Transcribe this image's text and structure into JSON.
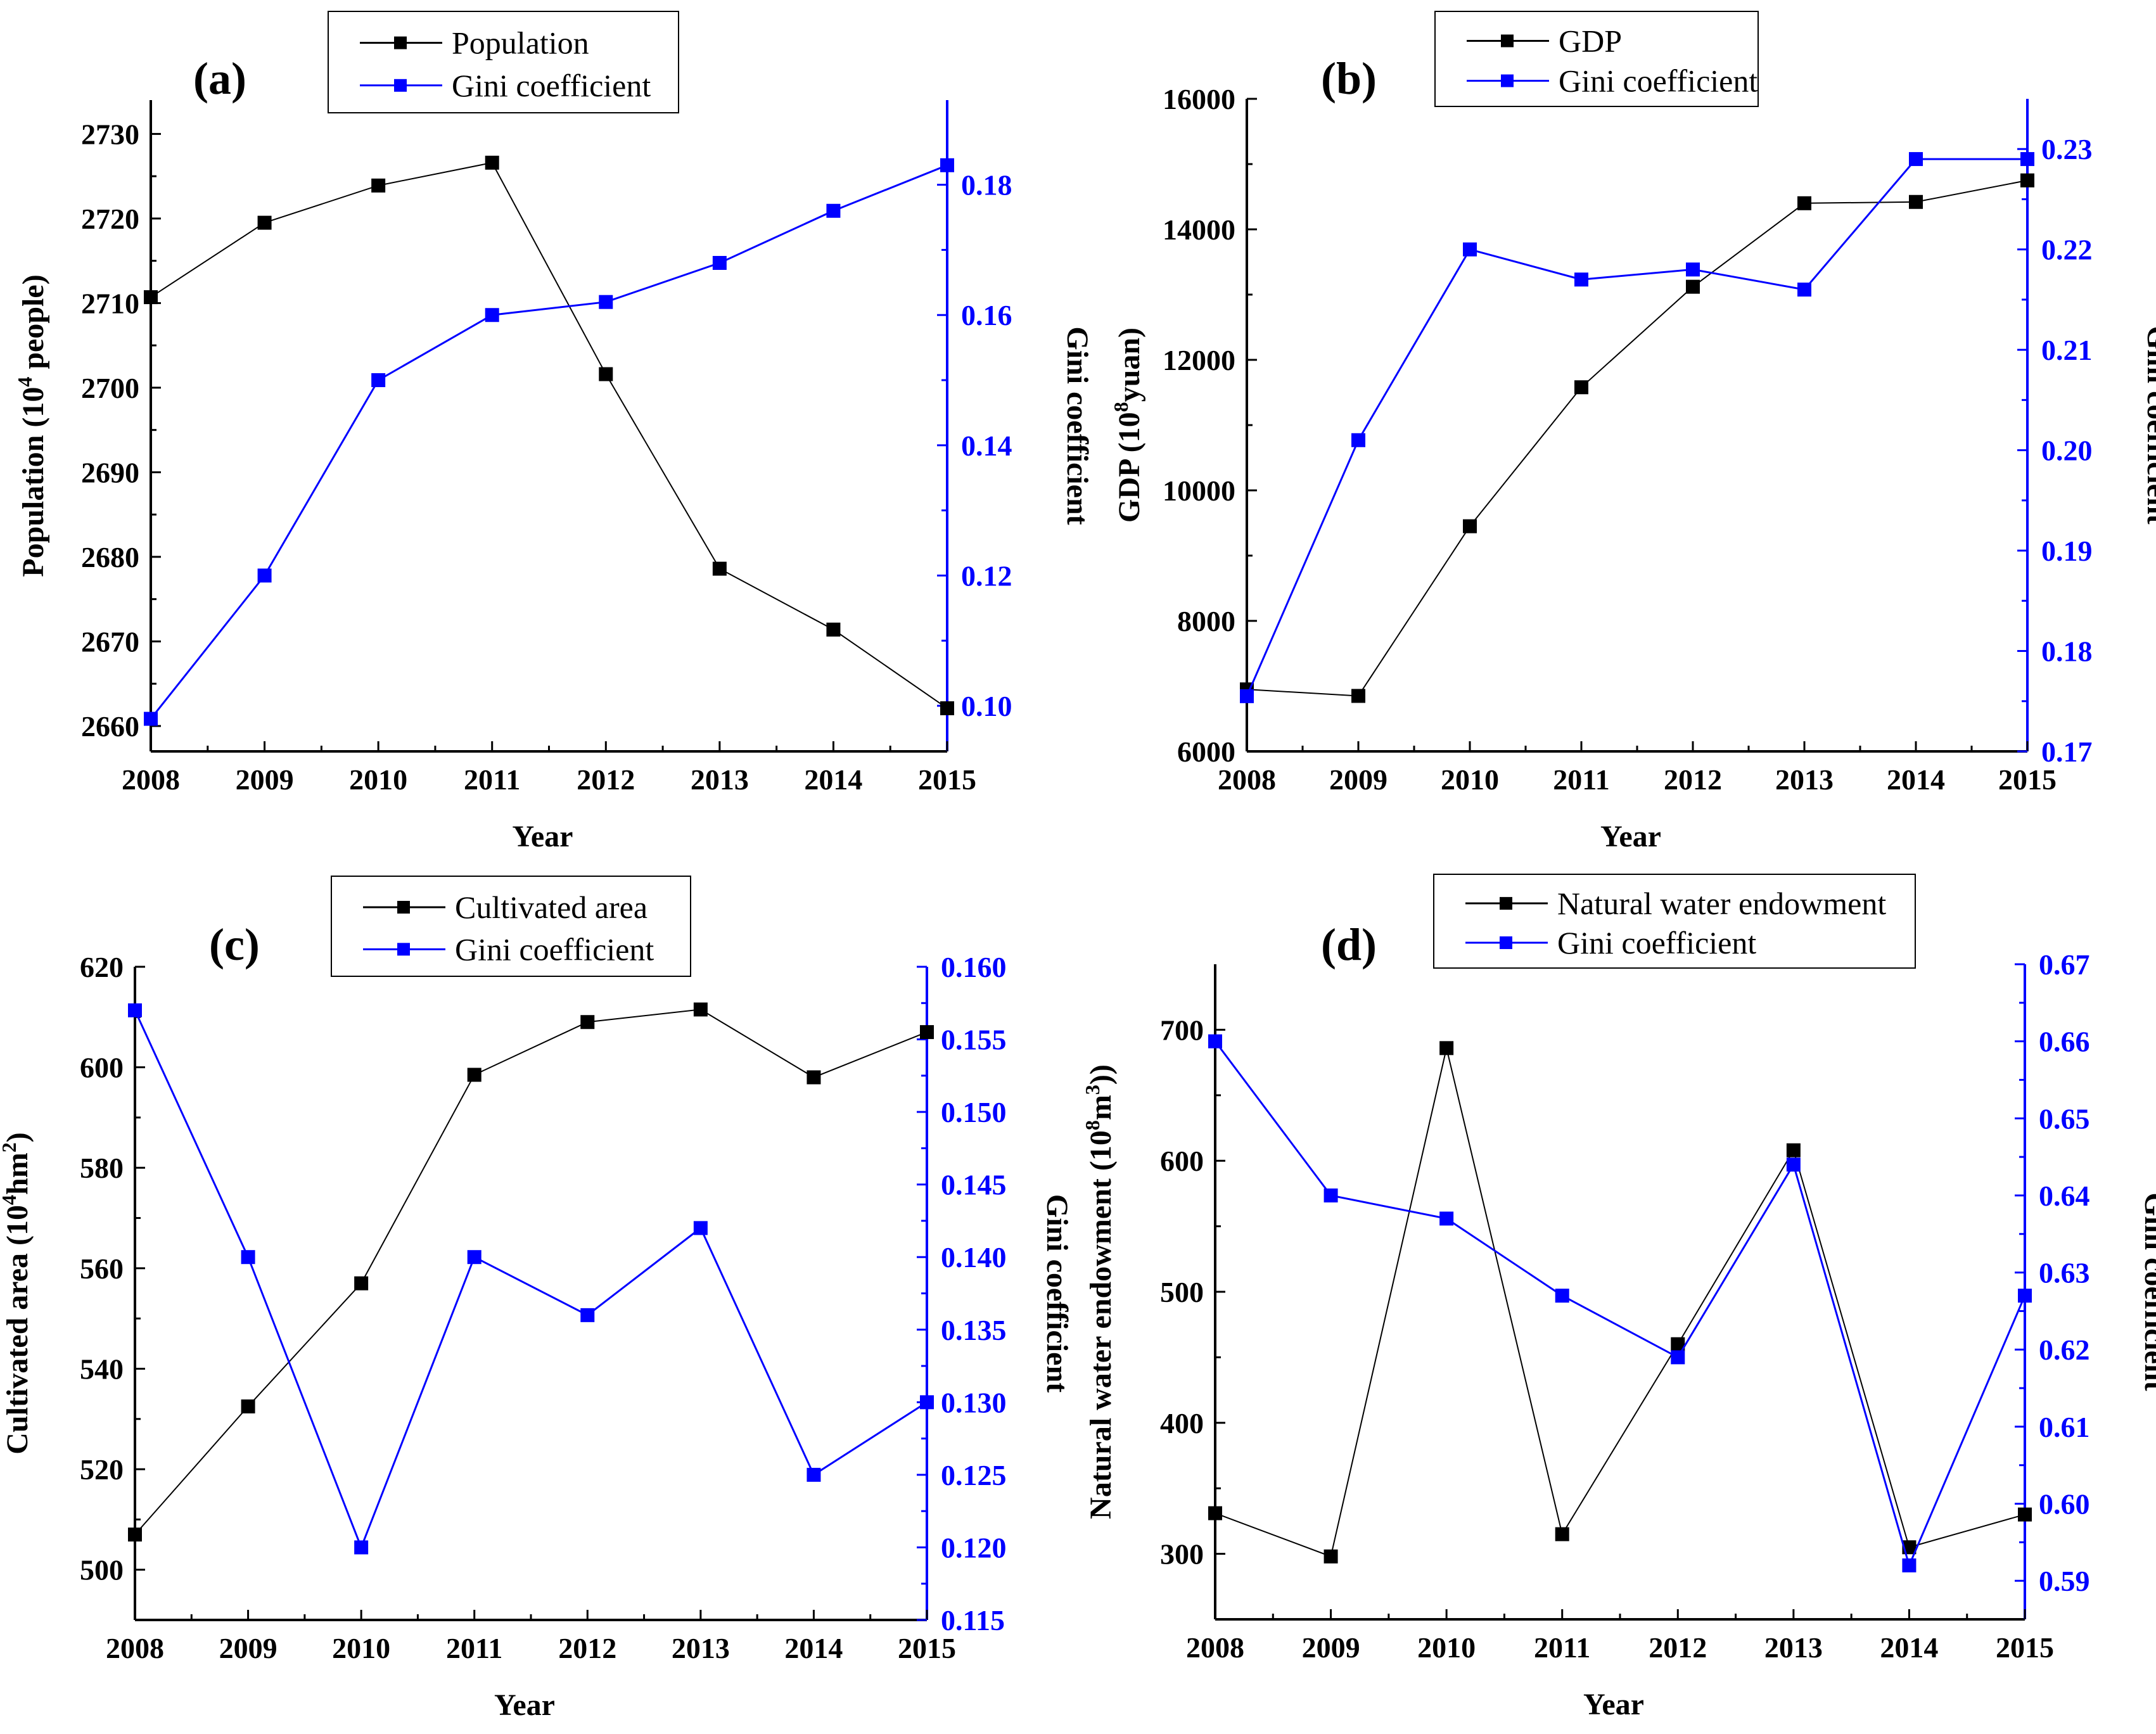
{
  "chart_data": [
    {
      "type": "line",
      "panel_label": "(a)",
      "x": [
        "2008",
        "2009",
        "2010",
        "2011",
        "2012",
        "2013",
        "2014",
        "2015"
      ],
      "xlabel": "Year",
      "series": [
        {
          "name": "Population",
          "axis": "left",
          "color": "#000000",
          "values": [
            2710.7,
            2719.5,
            2723.9,
            2726.6,
            2701.6,
            2678.6,
            2671.4,
            2662.1
          ]
        },
        {
          "name": "Gini coefficient",
          "axis": "right",
          "color": "#0000ff",
          "values": [
            0.098,
            0.12,
            0.15,
            0.16,
            0.162,
            0.168,
            0.176,
            0.183
          ]
        }
      ],
      "left_axis": {
        "label_main": "Population (10",
        "label_sup": "4",
        "label_tail": " people)",
        "ylim": [
          2657,
          2734
        ],
        "ticks": [
          "2660",
          "2670",
          "2680",
          "2690",
          "2700",
          "2710",
          "2720",
          "2730"
        ]
      },
      "right_axis": {
        "label": "Gini coefficient",
        "ylim": [
          0.093,
          0.193
        ],
        "ticks": [
          "0.10",
          "0.12",
          "0.14",
          "0.16",
          "0.18"
        ]
      }
    },
    {
      "type": "line",
      "panel_label": "(b)",
      "x": [
        "2008",
        "2009",
        "2010",
        "2011",
        "2012",
        "2013",
        "2014",
        "2015"
      ],
      "xlabel": "Year",
      "series": [
        {
          "name": "GDP",
          "axis": "left",
          "color": "#000000",
          "values": [
            6950,
            6850,
            9450,
            11580,
            13120,
            14400,
            14420,
            14750
          ]
        },
        {
          "name": "Gini coefficient",
          "axis": "right",
          "color": "#0000ff",
          "values": [
            0.1755,
            0.201,
            0.22,
            0.217,
            0.218,
            0.216,
            0.229,
            0.229
          ]
        }
      ],
      "left_axis": {
        "label_main": "GDP (10",
        "label_sup": "8",
        "label_tail": "yuan)",
        "ylim": [
          6000,
          16000
        ],
        "ticks": [
          "6000",
          "8000",
          "10000",
          "12000",
          "14000",
          "16000"
        ]
      },
      "right_axis": {
        "label": "Gini coefficient",
        "ylim": [
          0.17,
          0.235
        ],
        "ticks": [
          "0.17",
          "0.18",
          "0.19",
          "0.20",
          "0.21",
          "0.22",
          "0.23"
        ]
      }
    },
    {
      "type": "line",
      "panel_label": "(c)",
      "x": [
        "2008",
        "2009",
        "2010",
        "2011",
        "2012",
        "2013",
        "2014",
        "2015"
      ],
      "xlabel": "Year",
      "series": [
        {
          "name": "Cultivated area",
          "axis": "left",
          "color": "#000000",
          "values": [
            507,
            532.5,
            557,
            598.5,
            609,
            611.5,
            598,
            607
          ]
        },
        {
          "name": "Gini coefficient",
          "axis": "right",
          "color": "#0000ff",
          "values": [
            0.157,
            0.14,
            0.12,
            0.14,
            0.136,
            0.142,
            0.125,
            0.13
          ]
        }
      ],
      "left_axis": {
        "label_main": "Cultivated area (10",
        "label_sup": "4",
        "label_tail": "hm",
        "label_sup2": "2",
        "label_end": ")",
        "ylim": [
          490,
          620
        ],
        "ticks": [
          "500",
          "520",
          "540",
          "560",
          "580",
          "600",
          "620"
        ]
      },
      "right_axis": {
        "label": "Gini coefficient",
        "ylim": [
          0.115,
          0.16
        ],
        "ticks": [
          "0.115",
          "0.120",
          "0.125",
          "0.130",
          "0.135",
          "0.140",
          "0.145",
          "0.150",
          "0.155",
          "0.160"
        ]
      }
    },
    {
      "type": "line",
      "panel_label": "(d)",
      "x": [
        "2008",
        "2009",
        "2010",
        "2011",
        "2012",
        "2013",
        "2014",
        "2015"
      ],
      "xlabel": "Year",
      "series": [
        {
          "name": "Natural water endowment",
          "axis": "left",
          "color": "#000000",
          "values": [
            331,
            298,
            686,
            315,
            460,
            608,
            305,
            330
          ]
        },
        {
          "name": "Gini coefficient",
          "axis": "right",
          "color": "#0000ff",
          "values": [
            0.66,
            0.64,
            0.637,
            0.627,
            0.619,
            0.644,
            0.592,
            0.627
          ]
        }
      ],
      "left_axis": {
        "label_main": "Natural water endowment (10",
        "label_sup": "8",
        "label_tail": "m",
        "label_sup2": "3",
        "label_end": "))",
        "ylim": [
          250,
          750
        ],
        "ticks": [
          "300",
          "400",
          "500",
          "600",
          "700"
        ]
      },
      "right_axis": {
        "label": "Gini coefficient",
        "ylim": [
          0.585,
          0.67
        ],
        "ticks": [
          "0.59",
          "0.60",
          "0.61",
          "0.62",
          "0.63",
          "0.64",
          "0.65",
          "0.66",
          "0.67"
        ]
      }
    }
  ]
}
